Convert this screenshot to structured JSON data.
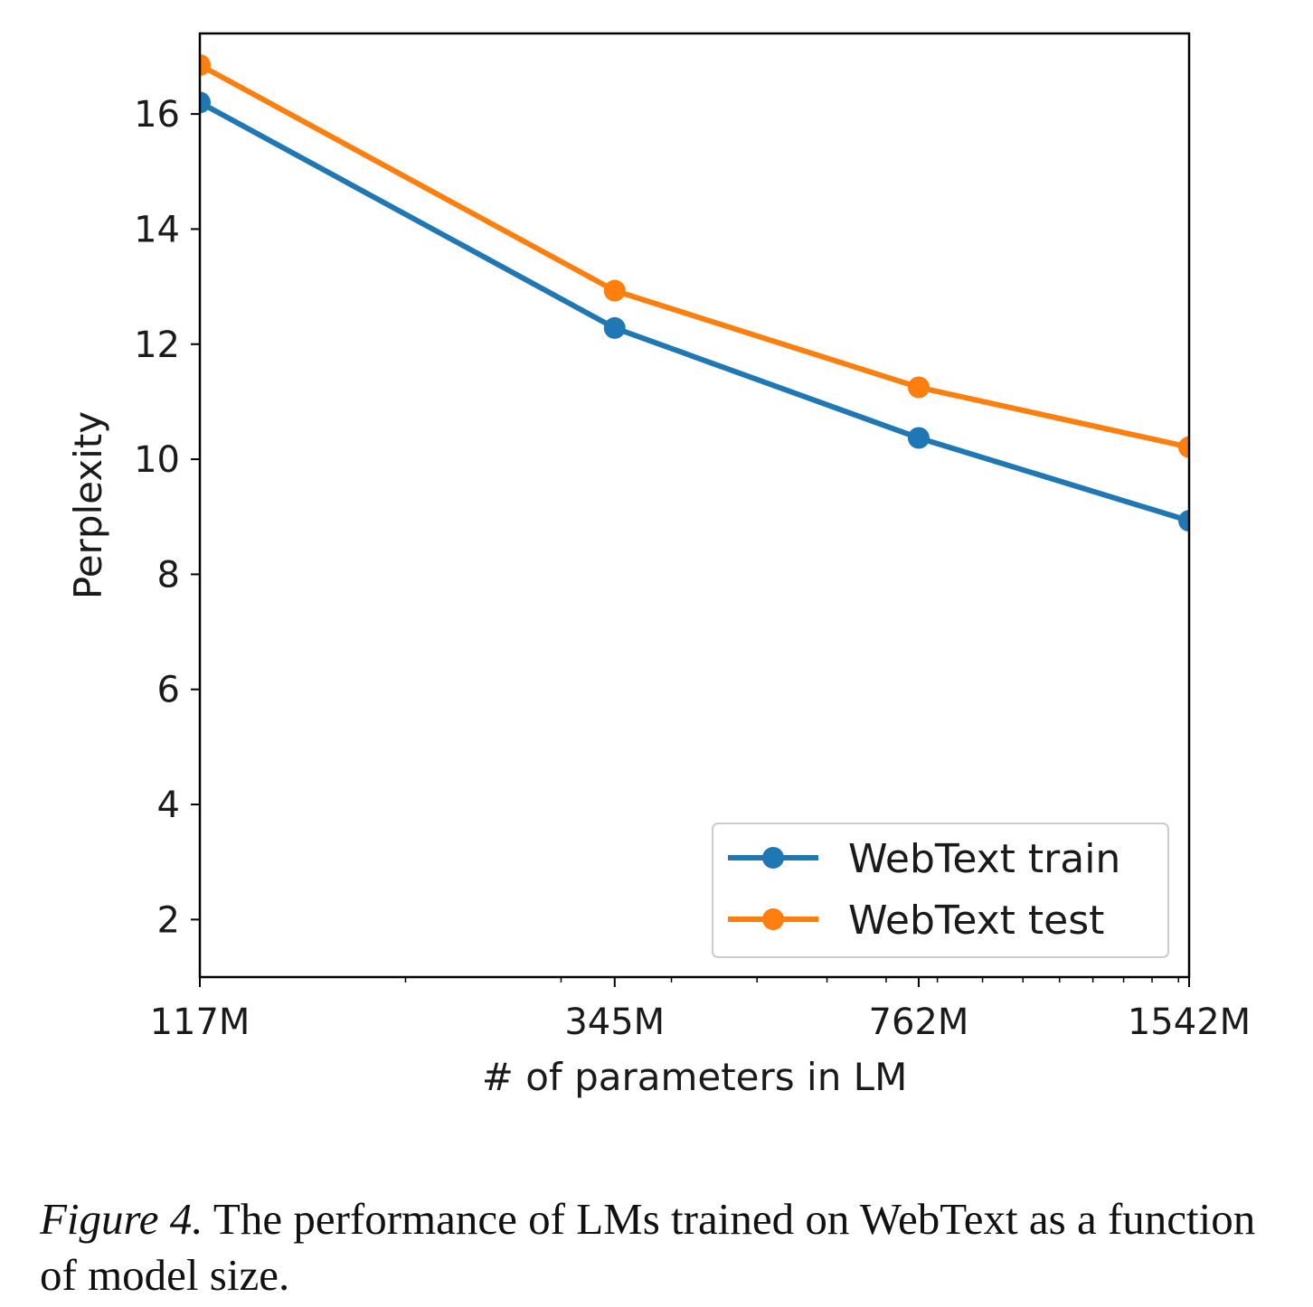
{
  "chart_data": {
    "type": "line",
    "xlabel": "# of parameters in LM",
    "ylabel": "Perplexity",
    "x_scale": "log",
    "x_ticks": [
      {
        "value": 117,
        "label": "117M"
      },
      {
        "value": 345,
        "label": "345M"
      },
      {
        "value": 762,
        "label": "762M"
      },
      {
        "value": 1542,
        "label": "1542M"
      }
    ],
    "xlim": [
      117,
      1542
    ],
    "ylim": [
      1,
      17.4
    ],
    "y_ticks": [
      2,
      4,
      6,
      8,
      10,
      12,
      14,
      16
    ],
    "grid": false,
    "legend_position": "lower-right",
    "series": [
      {
        "name": "WebText train",
        "color": "#1f77b4",
        "x": [
          117,
          345,
          762,
          1542
        ],
        "y": [
          16.2,
          12.28,
          10.37,
          8.93
        ]
      },
      {
        "name": "WebText test",
        "color": "#ff7f0e",
        "x": [
          117,
          345,
          762,
          1542
        ],
        "y": [
          16.85,
          12.93,
          11.25,
          10.21
        ]
      }
    ]
  },
  "caption": {
    "label": "Figure 4.",
    "text": " The performance of LMs trained on WebText as a function of model size."
  }
}
